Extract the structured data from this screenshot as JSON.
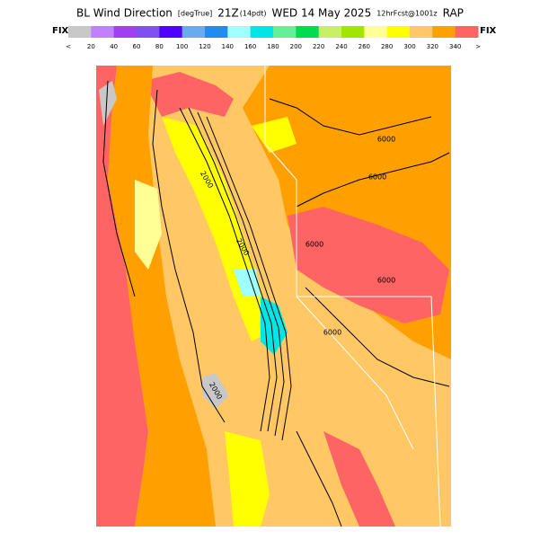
{
  "header": {
    "title_parts": [
      {
        "text": "BL Wind Direction",
        "size": "big"
      },
      {
        "text": "[degTrue]",
        "size": "small"
      },
      {
        "text": "21Z",
        "size": "big"
      },
      {
        "text": "(14pdt)",
        "size": "small"
      },
      {
        "text": "WED 14 May 2025",
        "size": "big"
      },
      {
        "text": "12hrFcst@1001z",
        "size": "small"
      },
      {
        "text": "RAP",
        "size": "big"
      }
    ]
  },
  "colorbar": {
    "left_label": "FIX",
    "right_label": "FIX",
    "under_label": "<",
    "over_label": ">",
    "colors": [
      "#c8c8c8",
      "#c080ff",
      "#a040f0",
      "#8050f0",
      "#5000ff",
      "#6aaaf0",
      "#1e8cf0",
      "#a0ffff",
      "#00e6e6",
      "#64f096",
      "#00dc50",
      "#c8f064",
      "#a0e600",
      "#ffff96",
      "#ffff00",
      "#ffc864",
      "#ffa000",
      "#ff6464"
    ],
    "labels": [
      "20",
      "40",
      "60",
      "80",
      "100",
      "120",
      "140",
      "160",
      "180",
      "200",
      "220",
      "240",
      "260",
      "280",
      "300",
      "320",
      "340"
    ]
  },
  "map": {
    "contour_labels": [
      "6000",
      "6000",
      "6000",
      "6000",
      "6000",
      "2000",
      "2000",
      "2000"
    ]
  }
}
